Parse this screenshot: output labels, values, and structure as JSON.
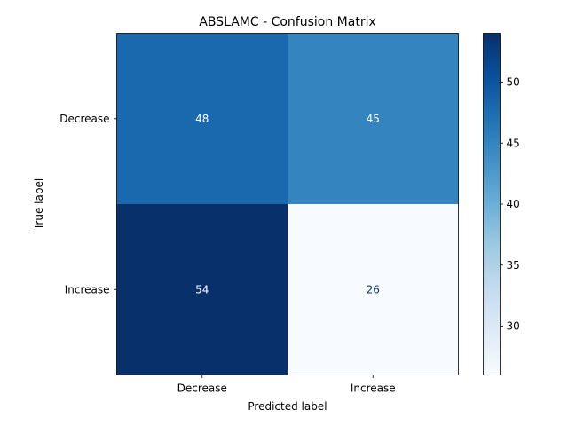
{
  "chart_data": {
    "type": "heatmap",
    "title": "ABSLAMC - Confusion Matrix",
    "xlabel": "Predicted label",
    "ylabel": "True label",
    "x_categories": [
      "Decrease",
      "Increase"
    ],
    "y_categories": [
      "Decrease",
      "Increase"
    ],
    "values": [
      [
        48,
        45
      ],
      [
        54,
        26
      ]
    ],
    "colormap": "Blues",
    "color_range": [
      26,
      54
    ],
    "colorbar_ticks": [
      30,
      35,
      40,
      45,
      50
    ]
  }
}
